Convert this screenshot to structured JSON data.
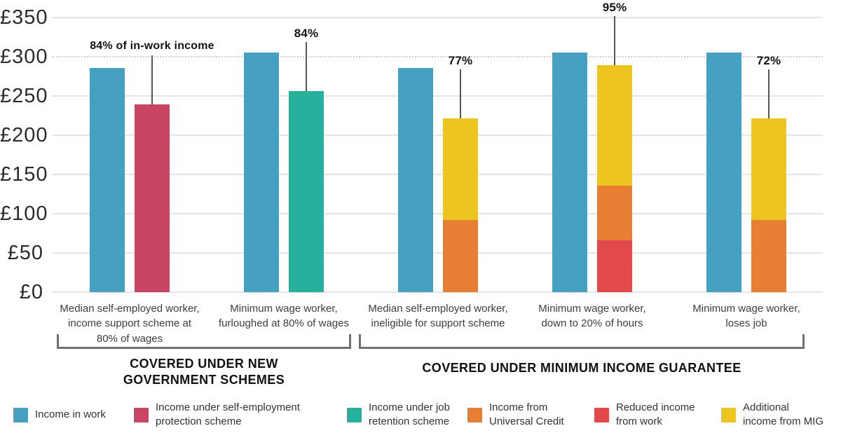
{
  "chart_data": {
    "type": "bar",
    "title": "",
    "xlabel": "",
    "ylabel": "",
    "ylim": [
      0,
      350
    ],
    "grid": true,
    "legend_position": "bottom",
    "currency_prefix": "£",
    "yticks": [
      {
        "value": 0,
        "label": "£0"
      },
      {
        "value": 50,
        "label": "£50"
      },
      {
        "value": 100,
        "label": "£100"
      },
      {
        "value": 150,
        "label": "£150"
      },
      {
        "value": 200,
        "label": "£200"
      },
      {
        "value": 250,
        "label": "£250"
      },
      {
        "value": 300,
        "label": "£300"
      },
      {
        "value": 350,
        "label": "£350"
      }
    ],
    "dotted_gridline_value": 300,
    "colors": {
      "in_work": "#46a0c2",
      "self_employment_protection": "#c84566",
      "job_retention": "#27b19d",
      "universal_credit": "#e67e33",
      "reduced_income_from_work": "#e2494a",
      "mig": "#ecc521"
    },
    "groups": [
      {
        "label_lines": [
          "Median self-employed worker,",
          "income support scheme at",
          "80% of wages"
        ],
        "annotation": "84% of in-work income",
        "bars": [
          {
            "segments": [
              {
                "key": "in_work",
                "value": 286
              }
            ]
          },
          {
            "segments": [
              {
                "key": "self_employment_protection",
                "value": 239
              }
            ]
          }
        ]
      },
      {
        "label_lines": [
          "Minimum wage worker,",
          "furloughed at 80% of wages"
        ],
        "annotation": "84%",
        "bars": [
          {
            "segments": [
              {
                "key": "in_work",
                "value": 305
              }
            ]
          },
          {
            "segments": [
              {
                "key": "job_retention",
                "value": 256
              }
            ]
          }
        ]
      },
      {
        "label_lines": [
          "Median self-employed worker,",
          "ineligible for support scheme"
        ],
        "annotation": "77%",
        "bars": [
          {
            "segments": [
              {
                "key": "in_work",
                "value": 286
              }
            ]
          },
          {
            "segments": [
              {
                "key": "universal_credit",
                "value": 92
              },
              {
                "key": "mig",
                "value": 129
              }
            ]
          }
        ]
      },
      {
        "label_lines": [
          "Minimum wage worker,",
          "down to 20% of hours"
        ],
        "annotation": "95%",
        "bars": [
          {
            "segments": [
              {
                "key": "in_work",
                "value": 305
              }
            ]
          },
          {
            "segments": [
              {
                "key": "reduced_income_from_work",
                "value": 66
              },
              {
                "key": "universal_credit",
                "value": 70
              },
              {
                "key": "mig",
                "value": 153
              }
            ]
          }
        ]
      },
      {
        "label_lines": [
          "Minimum wage worker,",
          "loses job"
        ],
        "annotation": "72%",
        "bars": [
          {
            "segments": [
              {
                "key": "in_work",
                "value": 305
              }
            ]
          },
          {
            "segments": [
              {
                "key": "universal_credit",
                "value": 92
              },
              {
                "key": "mig",
                "value": 129
              }
            ]
          }
        ]
      }
    ],
    "sections": [
      {
        "label_lines": [
          "COVERED UNDER NEW",
          "GOVERNMENT SCHEMES"
        ],
        "from_group": 0,
        "to_group": 1
      },
      {
        "label_lines": [
          "COVERED UNDER MINIMUM INCOME GUARANTEE"
        ],
        "from_group": 2,
        "to_group": 4
      }
    ],
    "legend": [
      {
        "key": "in_work",
        "lines": [
          "Income in work"
        ]
      },
      {
        "key": "self_employment_protection",
        "lines": [
          "Income under self-employment",
          "protection scheme"
        ]
      },
      {
        "key": "job_retention",
        "lines": [
          "Income under job",
          "retention scheme"
        ]
      },
      {
        "key": "universal_credit",
        "lines": [
          "Income from",
          "Universal Credit"
        ]
      },
      {
        "key": "reduced_income_from_work",
        "lines": [
          "Reduced income",
          "from work"
        ]
      },
      {
        "key": "mig",
        "lines": [
          "Additional",
          "income from MIG"
        ]
      }
    ]
  }
}
